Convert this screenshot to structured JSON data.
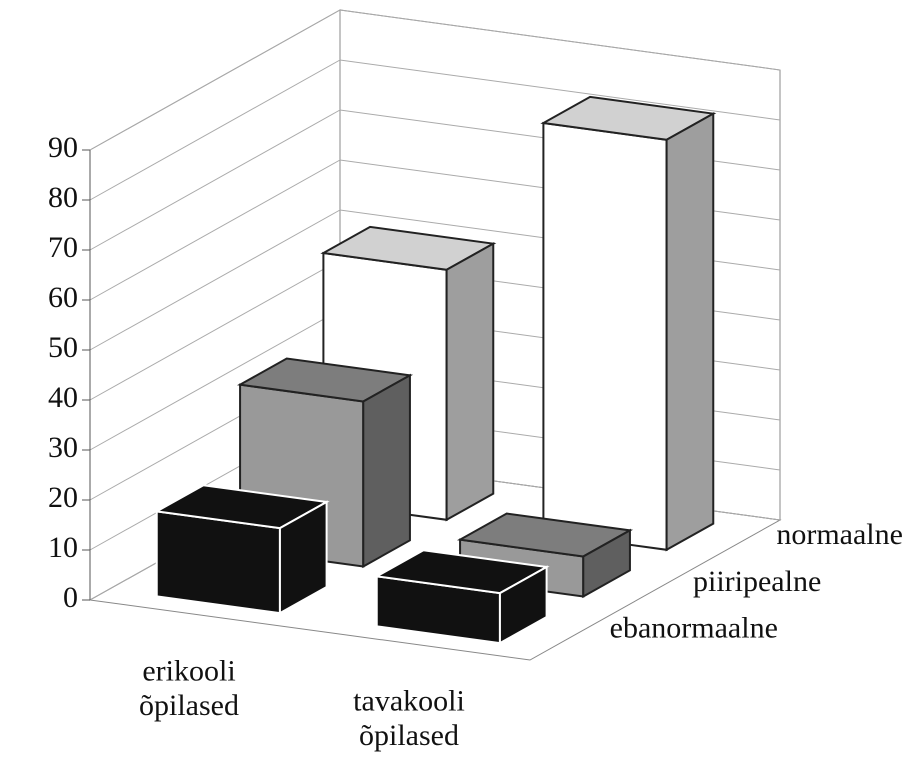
{
  "chart_data": {
    "type": "bar3d",
    "categories": [
      "erikooli õpilased",
      "tavakooli õpilased"
    ],
    "series": [
      {
        "name": "ebanormaalne",
        "color": "#111111",
        "values": [
          17,
          10
        ]
      },
      {
        "name": "piiripealne",
        "color": "#999999",
        "values": [
          33,
          8
        ]
      },
      {
        "name": "normaalne",
        "color": "#ffffff",
        "values": [
          50,
          82
        ]
      }
    ],
    "ylim": [
      0,
      90
    ],
    "yticks": [
      0,
      10,
      20,
      30,
      40,
      50,
      60,
      70,
      80,
      90
    ],
    "grid": true
  }
}
